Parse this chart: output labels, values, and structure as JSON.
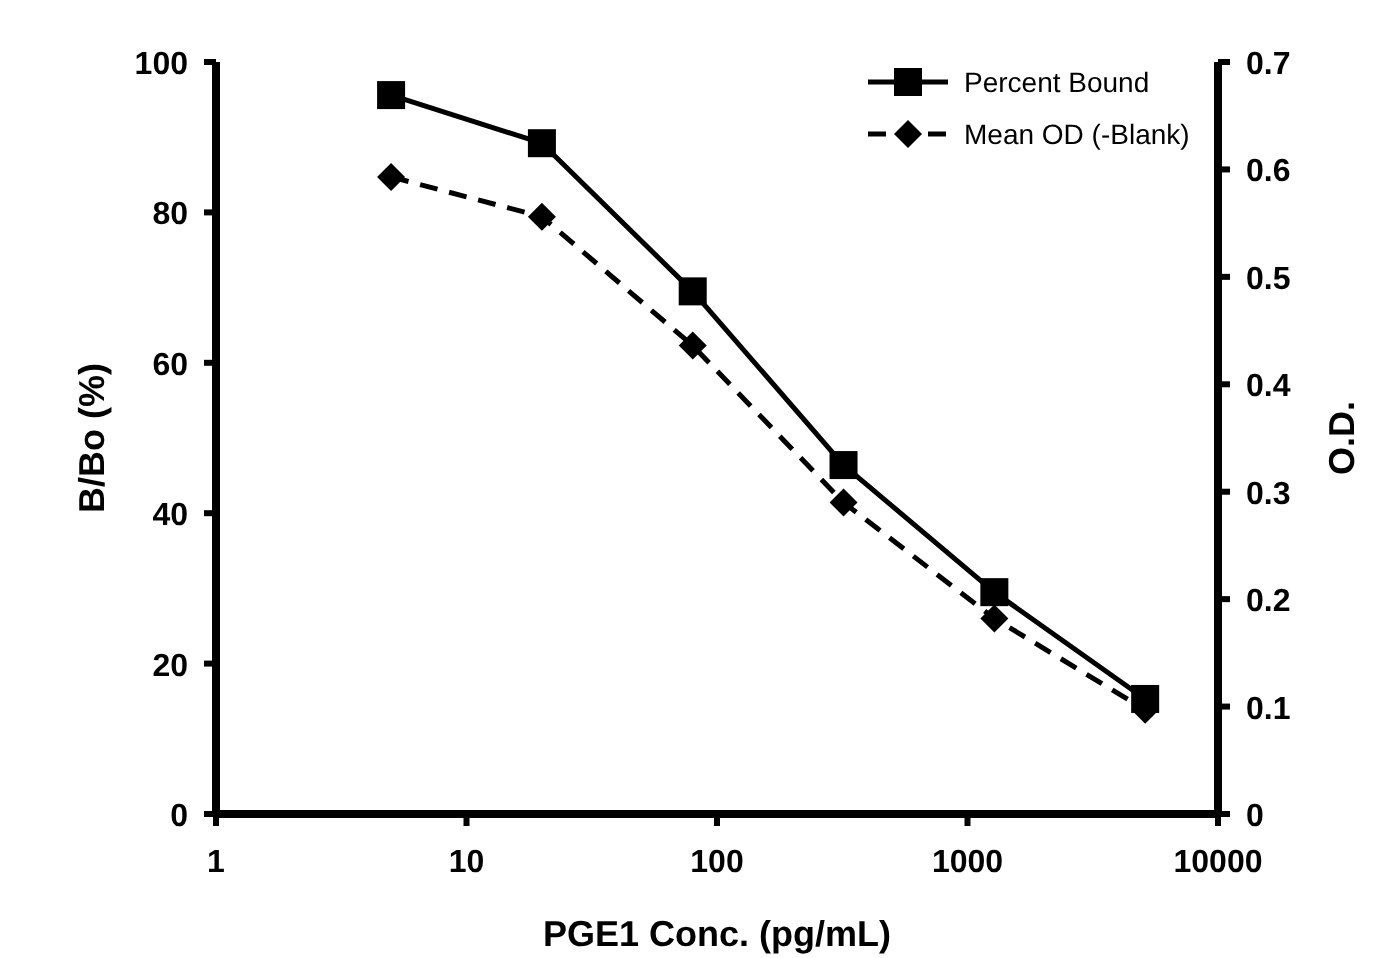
{
  "chart_data": {
    "type": "line",
    "xlabel": "PGE1 Conc. (pg/mL)",
    "ylabel": "B/Bo (%)",
    "y2label": "O.D.",
    "log": "x",
    "x": [
      5,
      20,
      80,
      320,
      1280,
      5120
    ],
    "xlim": [
      1,
      10000
    ],
    "xticks": [
      1,
      10,
      100,
      1000,
      10000
    ],
    "ylim": [
      0,
      100
    ],
    "yticks": [
      0,
      20,
      40,
      60,
      80,
      100
    ],
    "y2lim": [
      0,
      0.7
    ],
    "y2ticks": [
      0,
      0.1,
      0.2,
      0.3,
      0.4,
      0.5,
      0.6,
      0.7
    ],
    "grid": false,
    "legend": "top right",
    "series": [
      {
        "name": "Percent Bound",
        "color": "#000000",
        "marker": "square",
        "line_style": "solid",
        "values": [
          95.6,
          89.2,
          69.5,
          46.4,
          29.5,
          15.3
        ]
      },
      {
        "name": "Mean OD (-Blank)",
        "color": "#000000",
        "marker": "diamond",
        "line_style": "dashed",
        "axis": "y2",
        "values": [
          0.593,
          0.556,
          0.436,
          0.29,
          0.182,
          0.097
        ]
      }
    ]
  }
}
